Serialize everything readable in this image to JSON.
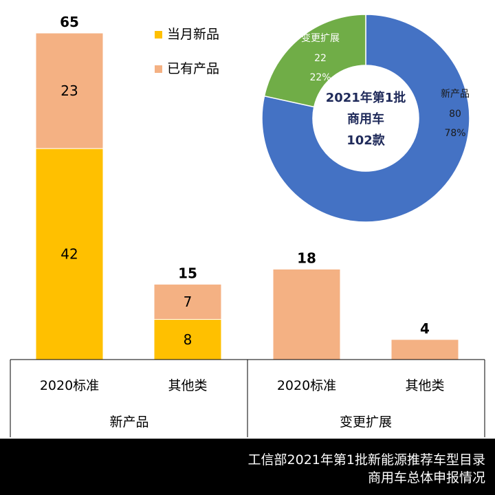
{
  "chart_data": {
    "type": "bar",
    "stacked": true,
    "categories": [
      "2020标准",
      "其他类",
      "2020标准",
      "其他类"
    ],
    "groups": [
      {
        "label": "新产品",
        "categories": [
          0,
          1
        ]
      },
      {
        "label": "变更扩展",
        "categories": [
          2,
          3
        ]
      }
    ],
    "series": [
      {
        "name": "当月新品",
        "color": "#FFC000",
        "values": [
          42,
          8,
          0,
          0
        ]
      },
      {
        "name": "已有产品",
        "color": "#F4B183",
        "values": [
          23,
          7,
          18,
          4
        ]
      }
    ],
    "totals": [
      65,
      15,
      18,
      4
    ],
    "ylim": [
      0,
      65
    ],
    "legend_position": "top-center",
    "donut": {
      "center_lines": [
        "2021年第1批",
        "商用车",
        "102款"
      ],
      "slices": [
        {
          "label": "新产品",
          "value": 80,
          "percent": "78%",
          "color": "#4472C4"
        },
        {
          "label": "变更扩展",
          "value": 22,
          "percent": "22%",
          "color": "#70AD47"
        }
      ]
    }
  },
  "footer": {
    "line1": "工信部2021年第1批新能源推荐车型目录",
    "line2": "商用车总体申报情况"
  }
}
